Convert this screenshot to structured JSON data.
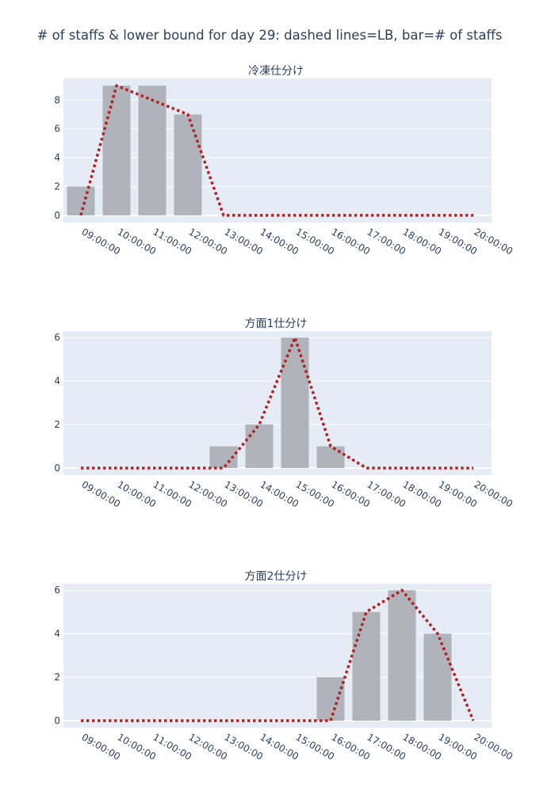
{
  "title": "# of staffs & lower bound for day 29: dashed lines=LB, bar=# of staffs",
  "colors": {
    "plot_background": "#e5ecf6",
    "grid": "#ffffff",
    "bar": "#b0b4ba",
    "lower_bound_line": "#b22222",
    "text": "#2a3f5f"
  },
  "chart_data": [
    {
      "type": "bar",
      "title": "冷凍仕分け",
      "categories": [
        "09:00:00",
        "10:00:00",
        "11:00:00",
        "12:00:00",
        "13:00:00",
        "14:00:00",
        "15:00:00",
        "16:00:00",
        "17:00:00",
        "18:00:00",
        "19:00:00",
        "20:00:00"
      ],
      "y_ticks": [
        0,
        2,
        4,
        6,
        8
      ],
      "ylim": [
        -0.5,
        9.5
      ],
      "grid": true,
      "series": [
        {
          "kind": "bar",
          "style": "solid bars",
          "values": [
            2,
            9,
            9,
            7,
            0,
            0,
            0,
            0,
            0,
            0,
            0,
            0
          ]
        },
        {
          "kind": "line",
          "style": "dotted",
          "values": [
            0,
            9,
            8,
            7,
            0,
            0,
            0,
            0,
            0,
            0,
            0,
            0
          ]
        }
      ]
    },
    {
      "type": "bar",
      "title": "方面1仕分け",
      "categories": [
        "09:00:00",
        "10:00:00",
        "11:00:00",
        "12:00:00",
        "13:00:00",
        "14:00:00",
        "15:00:00",
        "16:00:00",
        "17:00:00",
        "18:00:00",
        "19:00:00",
        "20:00:00"
      ],
      "y_ticks": [
        0,
        2,
        4,
        6
      ],
      "ylim": [
        -0.33,
        6.3
      ],
      "grid": true,
      "series": [
        {
          "kind": "bar",
          "style": "solid bars",
          "values": [
            0,
            0,
            0,
            0,
            1,
            2,
            6,
            1,
            0,
            0,
            0,
            0
          ]
        },
        {
          "kind": "line",
          "style": "dotted",
          "values": [
            0,
            0,
            0,
            0,
            0,
            2,
            6,
            1,
            0,
            0,
            0,
            0
          ]
        }
      ]
    },
    {
      "type": "bar",
      "title": "方面2仕分け",
      "categories": [
        "09:00:00",
        "10:00:00",
        "11:00:00",
        "12:00:00",
        "13:00:00",
        "14:00:00",
        "15:00:00",
        "16:00:00",
        "17:00:00",
        "18:00:00",
        "19:00:00",
        "20:00:00"
      ],
      "y_ticks": [
        0,
        2,
        4,
        6
      ],
      "ylim": [
        -0.33,
        6.3
      ],
      "grid": true,
      "series": [
        {
          "kind": "bar",
          "style": "solid bars",
          "values": [
            0,
            0,
            0,
            0,
            0,
            0,
            0,
            2,
            5,
            6,
            4,
            0
          ]
        },
        {
          "kind": "line",
          "style": "dotted",
          "values": [
            0,
            0,
            0,
            0,
            0,
            0,
            0,
            0,
            5,
            6,
            4,
            0
          ]
        }
      ]
    }
  ]
}
